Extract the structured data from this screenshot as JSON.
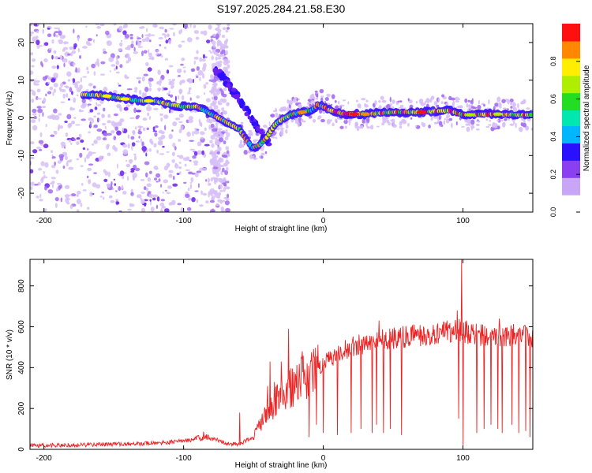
{
  "title": "S197.2025.284.21.58.E30",
  "chart_data": [
    {
      "type": "heatmap",
      "xlabel": "Height of straight line (km)",
      "ylabel": "Frequency (Hz)",
      "xlim": [
        -210,
        150
      ],
      "ylim": [
        -25,
        25
      ],
      "xticks": [
        -200,
        -100,
        0,
        100
      ],
      "yticks": [
        -20,
        -10,
        0,
        10,
        20
      ],
      "ridge": [
        [
          -172,
          6.2
        ],
        [
          -160,
          6.0
        ],
        [
          -150,
          5.5
        ],
        [
          -140,
          5.0
        ],
        [
          -130,
          4.5
        ],
        [
          -120,
          4.5
        ],
        [
          -110,
          3.5
        ],
        [
          -100,
          3.0
        ],
        [
          -90,
          3.0
        ],
        [
          -80,
          1.0
        ],
        [
          -70,
          -1.0
        ],
        [
          -60,
          -3.0
        ],
        [
          -55,
          -6.0
        ],
        [
          -50,
          -8.0
        ],
        [
          -45,
          -7.0
        ],
        [
          -40,
          -5.0
        ],
        [
          -35,
          -2.0
        ],
        [
          -30,
          -0.5
        ],
        [
          -22,
          1.0
        ],
        [
          -15,
          1.5
        ],
        [
          -8,
          2.0
        ],
        [
          -4,
          3.5
        ],
        [
          0,
          3.0
        ],
        [
          5,
          2.0
        ],
        [
          15,
          1.0
        ],
        [
          30,
          1.0
        ],
        [
          50,
          1.5
        ],
        [
          70,
          1.5
        ],
        [
          90,
          2.0
        ],
        [
          100,
          0.8
        ],
        [
          120,
          1.0
        ],
        [
          140,
          0.8
        ],
        [
          150,
          0.8
        ]
      ],
      "colorbar": {
        "label": "Normalized spectral amplitude",
        "ticks": [
          0.0,
          0.2,
          0.4,
          0.6,
          0.8
        ],
        "range": [
          0,
          1
        ],
        "colors": [
          "#ffffff",
          "#c9a6f5",
          "#8a3ff0",
          "#2a10ff",
          "#00b6ff",
          "#00e8b0",
          "#22dd22",
          "#b0ee00",
          "#ffee00",
          "#ff8800",
          "#ff1010",
          "#ff0080"
        ]
      }
    },
    {
      "type": "line",
      "xlabel": "Height of straight line (km)",
      "ylabel": "SNR (10 * v/v)",
      "xlim": [
        -210,
        150
      ],
      "ylim": [
        0,
        930
      ],
      "xticks": [
        -200,
        -100,
        0,
        100
      ],
      "yticks": [
        0,
        200,
        400,
        600,
        800
      ],
      "color": "#ee2222",
      "series": [
        {
          "x": [
            -210,
            -190,
            -170,
            -150,
            -130,
            -110,
            -95,
            -85,
            -80,
            -75,
            -70,
            -60,
            -50,
            -45,
            -40,
            -35,
            -30,
            -25,
            -20,
            -15,
            -10,
            -5,
            0,
            10,
            20,
            30,
            40,
            50,
            60,
            70,
            80,
            90,
            95,
            100,
            105,
            110,
            120,
            130,
            140,
            150
          ],
          "values": [
            18,
            20,
            22,
            25,
            28,
            35,
            45,
            70,
            50,
            45,
            30,
            25,
            60,
            120,
            180,
            230,
            270,
            300,
            320,
            340,
            360,
            390,
            420,
            470,
            500,
            520,
            540,
            545,
            550,
            555,
            560,
            575,
            590,
            580,
            570,
            560,
            555,
            560,
            560,
            555
          ],
          "spikes": [
            [
              -60,
              180
            ],
            [
              -45,
              150
            ],
            [
              -40,
              310
            ],
            [
              -38,
              430
            ],
            [
              -35,
              330
            ],
            [
              -30,
              430
            ],
            [
              -25,
              590
            ],
            [
              -22,
              395
            ],
            [
              -15,
              480
            ],
            [
              -5,
              230
            ],
            [
              0,
              290
            ],
            [
              -10,
              60
            ],
            [
              -5,
              120
            ],
            [
              0,
              80
            ],
            [
              10,
              70
            ],
            [
              20,
              80
            ],
            [
              27,
              100
            ],
            [
              35,
              80
            ],
            [
              38,
              120
            ],
            [
              43,
              80
            ],
            [
              48,
              100
            ],
            [
              56,
              70
            ],
            [
              40,
              630
            ],
            [
              65,
              610
            ],
            [
              88,
              620
            ],
            [
              96,
              680
            ],
            [
              99,
              930
            ],
            [
              126,
              640
            ],
            [
              148,
              620
            ],
            [
              97,
              150
            ],
            [
              100,
              20
            ],
            [
              110,
              80
            ],
            [
              115,
              100
            ],
            [
              120,
              120
            ],
            [
              125,
              100
            ],
            [
              128,
              80
            ],
            [
              135,
              120
            ],
            [
              140,
              80
            ],
            [
              145,
              90
            ],
            [
              148,
              60
            ]
          ]
        }
      ]
    }
  ]
}
